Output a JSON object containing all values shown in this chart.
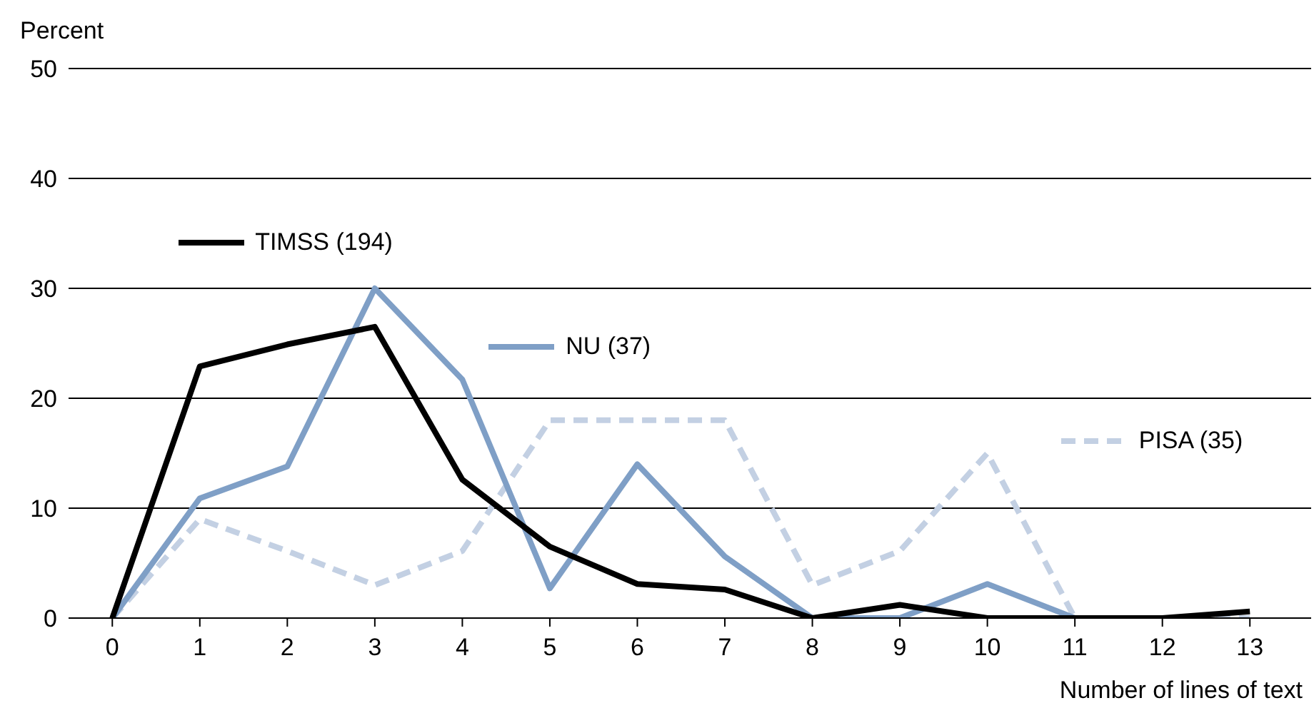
{
  "chart_data": {
    "type": "line",
    "ylabel": "Percent",
    "xlabel": "Number of lines of text",
    "x": [
      0,
      1,
      2,
      3,
      4,
      5,
      6,
      7,
      8,
      9,
      10,
      11,
      12,
      13
    ],
    "xlim": [
      -0.5,
      13.7
    ],
    "xticks": [
      0,
      1,
      2,
      3,
      4,
      5,
      6,
      7,
      8,
      9,
      10,
      11,
      12,
      13
    ],
    "ylim": [
      0,
      50
    ],
    "yticks": [
      0,
      10,
      20,
      30,
      40,
      50
    ],
    "grid": "y",
    "marker": "none",
    "legend": "top",
    "series": [
      {
        "name": "PISA (35)",
        "color": "#c3d0e3",
        "line_style": "dashed",
        "values": [
          0,
          9,
          6.1,
          3,
          6.1,
          18,
          18,
          18,
          3,
          6.1,
          15,
          0,
          0,
          0
        ]
      },
      {
        "name": "NU (37)",
        "color": "#7f9fc6",
        "line_style": "solid",
        "values": [
          0,
          10.9,
          13.8,
          30,
          21.7,
          2.7,
          14,
          5.6,
          0,
          0,
          3.1,
          0,
          null,
          null
        ]
      },
      {
        "name": "TIMSS (194)",
        "color": "#000000",
        "line_style": "solid",
        "values": [
          0,
          22.9,
          24.9,
          26.5,
          12.6,
          6.5,
          3.1,
          2.6,
          0,
          1.2,
          0,
          0,
          0,
          0.6
        ]
      }
    ]
  }
}
